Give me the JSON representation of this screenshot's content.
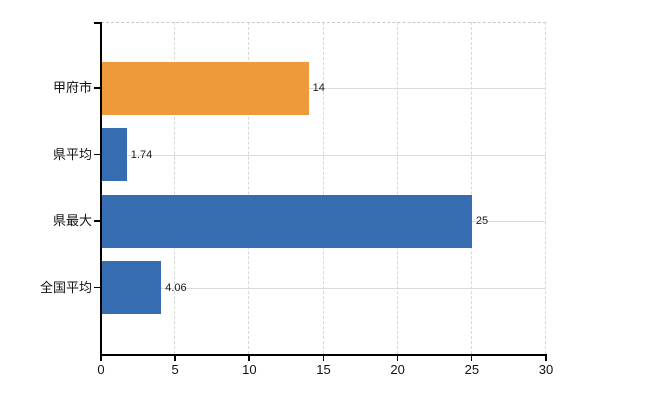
{
  "chart_data": {
    "type": "bar",
    "orientation": "horizontal",
    "title": "",
    "categories": [
      "甲府市",
      "県平均",
      "県最大",
      "全国平均"
    ],
    "values": [
      14,
      1.74,
      25,
      4.06
    ],
    "value_labels": [
      "14",
      "1.74",
      "25",
      "4.06"
    ],
    "bar_colors": [
      "#ee9a3a",
      "#366db0",
      "#366db0",
      "#366db0"
    ],
    "x_ticks": [
      0,
      5,
      10,
      15,
      20,
      25,
      30
    ],
    "xlim": [
      0,
      30
    ],
    "grid": true,
    "legend": false,
    "colors": {
      "orange_bar": "#ee9a3a",
      "blue_bar": "#366db0",
      "axis": "#000000",
      "horizontal_gridline": "#d9ddd5",
      "vertical_gridline": "#d7d7d3",
      "plot_border_top": "#c9c9c9",
      "text": "#1a1a1a",
      "background": "#ffffff"
    }
  }
}
